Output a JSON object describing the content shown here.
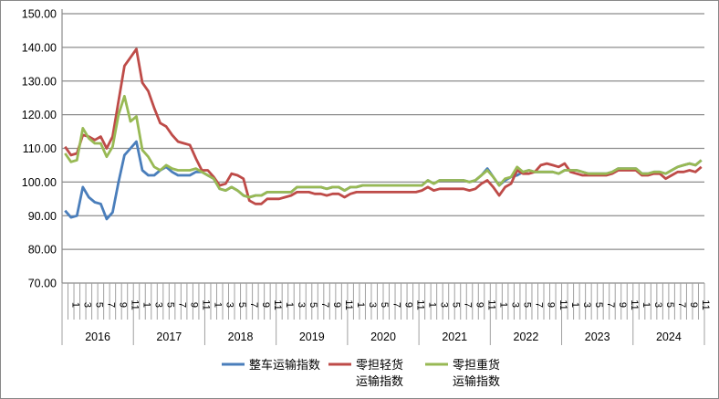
{
  "chart_data": {
    "type": "line",
    "title": "",
    "xlabel": "",
    "ylabel": "",
    "ylim": [
      70,
      150
    ],
    "yticks": [
      "70.00",
      "80.00",
      "90.00",
      "100.00",
      "110.00",
      "120.00",
      "130.00",
      "140.00",
      "150.00"
    ],
    "grid": true,
    "legend_position": "bottom",
    "years": [
      "2016",
      "2017",
      "2018",
      "2019",
      "2020",
      "2021",
      "2022",
      "2023",
      "2024"
    ],
    "month_labels": [
      "1",
      "",
      "3",
      "",
      "5",
      "",
      "7",
      "",
      "9",
      "",
      "11",
      ""
    ],
    "series": [
      {
        "name": "整车运输指数",
        "name_lines": [
          "整车运输指数"
        ],
        "color": "#4a7ebb",
        "values": [
          91.5,
          89.5,
          90,
          98.5,
          95.5,
          94,
          93.5,
          89,
          91,
          100,
          108,
          110,
          112,
          103.5,
          102,
          102,
          103.5,
          104.5,
          103,
          102,
          102,
          102,
          103,
          103,
          102,
          101,
          98,
          97.5,
          98.5,
          97.5,
          96,
          95.5,
          96,
          96,
          97,
          97,
          97,
          97,
          97,
          98.5,
          98.5,
          98.5,
          98.5,
          98.5,
          98,
          98.5,
          98.5,
          97.5,
          98.5,
          98.5,
          99,
          99,
          99,
          99,
          99,
          99,
          99,
          99,
          99,
          99,
          99,
          100.5,
          99.5,
          100.5,
          100.5,
          100.5,
          100.5,
          100.5,
          100,
          100.5,
          102,
          104,
          101.5,
          99,
          100.5,
          101.5,
          102,
          103,
          103.5,
          103,
          103,
          103,
          103,
          102.5,
          103.5,
          103.5,
          103.5,
          103,
          102.5,
          102.5,
          102.5,
          102.5,
          103,
          104,
          104,
          104,
          104,
          102.5,
          102.5,
          103,
          103,
          102.5,
          103.5,
          104.5,
          105,
          105.5,
          105,
          106.5
        ]
      },
      {
        "name": "零担轻货运输指数",
        "name_lines": [
          "零担轻货",
          "运输指数"
        ],
        "color": "#be4b48",
        "values": [
          110.5,
          108,
          108.5,
          114,
          113.5,
          112.5,
          113.5,
          110,
          113.5,
          124,
          134.5,
          137,
          139.5,
          129.5,
          127,
          122,
          117.5,
          116.5,
          114,
          112,
          111.5,
          111,
          107,
          103.5,
          103.5,
          101.5,
          99,
          99.5,
          102.5,
          102,
          101,
          94.5,
          93.5,
          93.5,
          95,
          95,
          95,
          95.5,
          96,
          97,
          97,
          97,
          96.5,
          96.5,
          96,
          96.5,
          96.5,
          95.5,
          96.5,
          97,
          97,
          97,
          97,
          97,
          97,
          97,
          97,
          97,
          97,
          97,
          97.5,
          98.5,
          97.5,
          98,
          98,
          98,
          98,
          98,
          97.5,
          98,
          99.5,
          100.5,
          98.5,
          96,
          98.5,
          99.5,
          103.5,
          102.5,
          102.5,
          103,
          105,
          105.5,
          105,
          104.5,
          105.5,
          103,
          102.5,
          102,
          102,
          102,
          102,
          102,
          102.5,
          103.5,
          103.5,
          103.5,
          103.5,
          102,
          102,
          102.5,
          102.5,
          101,
          102,
          103,
          103,
          103.5,
          103,
          104.5
        ]
      },
      {
        "name": "零担重货运输指数",
        "name_lines": [
          "零担重货",
          "运输指数"
        ],
        "color": "#98b954",
        "values": [
          108.5,
          106,
          106.5,
          116,
          113,
          111.5,
          111.5,
          107.5,
          110.5,
          120,
          125.5,
          118,
          119.5,
          109.5,
          107.5,
          104.5,
          103.5,
          105,
          104,
          103.5,
          103.5,
          103.5,
          104,
          103,
          102,
          101,
          98,
          97.5,
          98.5,
          97.5,
          96,
          95.5,
          96,
          96,
          97,
          97,
          97,
          97,
          97,
          98.5,
          98.5,
          98.5,
          98.5,
          98.5,
          98,
          98.5,
          98.5,
          97.5,
          98.5,
          98.5,
          99,
          99,
          99,
          99,
          99,
          99,
          99,
          99,
          99,
          99,
          99,
          100.5,
          99.5,
          100.5,
          100.5,
          100.5,
          100.5,
          100.5,
          100,
          100.5,
          102,
          103.5,
          101.5,
          99,
          101,
          101.5,
          104.5,
          103,
          103.5,
          103,
          103,
          103,
          103,
          102.5,
          103.5,
          103.5,
          103.5,
          103,
          102.5,
          102.5,
          102.5,
          102.5,
          103,
          104,
          104,
          104,
          104,
          102.5,
          102.5,
          103,
          103,
          102.5,
          103.5,
          104.5,
          105,
          105.5,
          105,
          106.5
        ]
      }
    ]
  }
}
